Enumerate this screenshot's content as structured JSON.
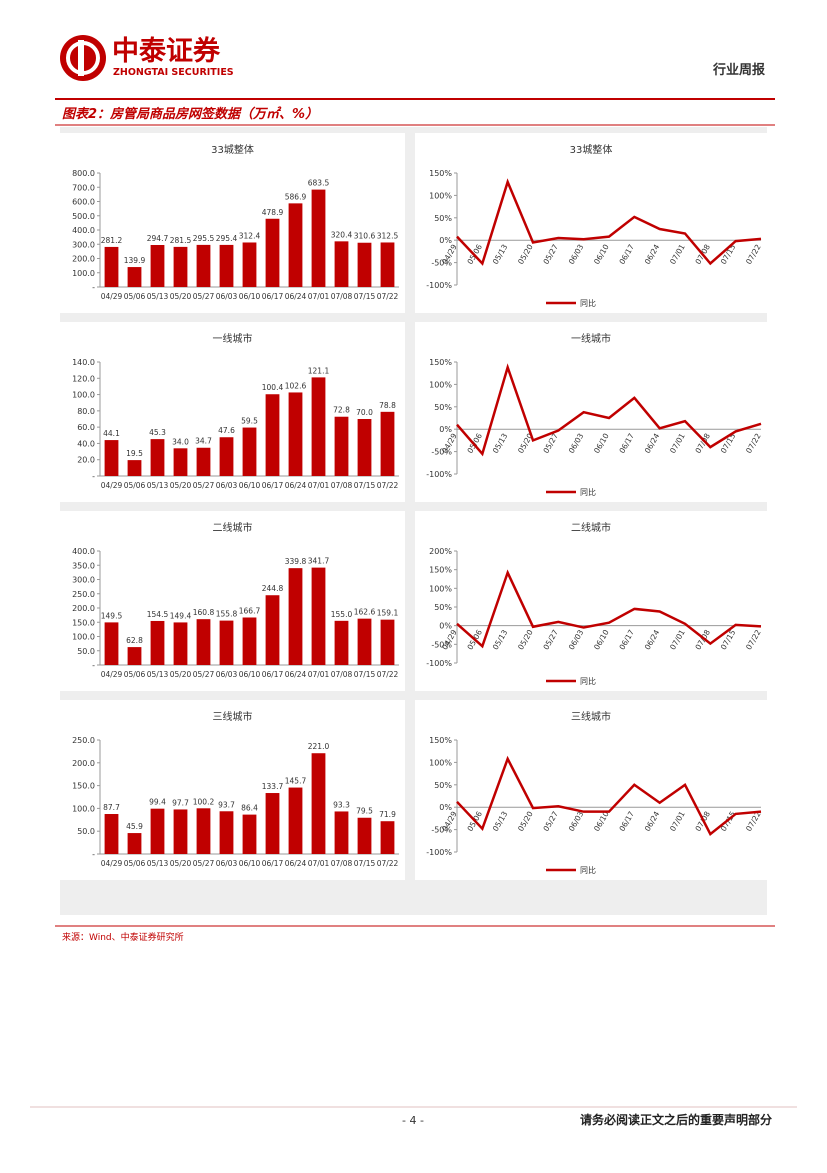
{
  "header": {
    "company": "中泰证券",
    "company_en": "ZHONGTAI SECURITIES",
    "report_type": "行业周报"
  },
  "figure_title": "图表2：房管局商品房网签数据（万㎡、%）",
  "source": "来源：Wind、中泰证券研究所",
  "footer": {
    "page": "- 4 -",
    "disclaimer": "请务必阅读正文之后的重要声明部分"
  },
  "chart_data": [
    {
      "type": "bar",
      "title": "33城整体",
      "color": "#c00000",
      "categories": [
        "04/29",
        "05/06",
        "05/13",
        "05/20",
        "05/27",
        "06/03",
        "06/10",
        "06/17",
        "06/24",
        "07/01",
        "07/08",
        "07/15",
        "07/22"
      ],
      "values": [
        281.2,
        139.9,
        294.7,
        281.5,
        295.5,
        295.4,
        312.4,
        478.9,
        586.9,
        683.5,
        320.4,
        310.6,
        312.5
      ],
      "ylim": [
        0,
        800
      ],
      "yticks": [
        {
          "value": 0,
          "label": "-"
        },
        {
          "value": 100,
          "label": "100.0"
        },
        {
          "value": 200,
          "label": "200.0"
        },
        {
          "value": 300,
          "label": "300.0"
        },
        {
          "value": 400,
          "label": "400.0"
        },
        {
          "value": 500,
          "label": "500.0"
        },
        {
          "value": 600,
          "label": "600.0"
        },
        {
          "value": 700,
          "label": "700.0"
        },
        {
          "value": 800,
          "label": "800.0"
        }
      ]
    },
    {
      "type": "line",
      "title": "33城整体",
      "categories": [
        "04/29",
        "05/06",
        "05/13",
        "05/20",
        "05/27",
        "06/03",
        "06/10",
        "06/17",
        "06/24",
        "07/01",
        "07/08",
        "07/15",
        "07/22"
      ],
      "series": [
        {
          "name": "同比",
          "color": "#c00000",
          "values": [
            8,
            -52,
            130,
            -5,
            5,
            2,
            8,
            52,
            25,
            15,
            -52,
            -2,
            3
          ]
        }
      ],
      "ylim": [
        -100,
        150
      ],
      "yticks": [
        {
          "value": -100,
          "label": "-100%"
        },
        {
          "value": -50,
          "label": "-50%"
        },
        {
          "value": 0,
          "label": "0%"
        },
        {
          "value": 50,
          "label": "50%"
        },
        {
          "value": 100,
          "label": "100%"
        },
        {
          "value": 150,
          "label": "150%"
        }
      ]
    },
    {
      "type": "bar",
      "title": "一线城市",
      "color": "#c00000",
      "categories": [
        "04/29",
        "05/06",
        "05/13",
        "05/20",
        "05/27",
        "06/03",
        "06/10",
        "06/17",
        "06/24",
        "07/01",
        "07/08",
        "07/15",
        "07/22"
      ],
      "values": [
        44.1,
        19.5,
        45.3,
        34.0,
        34.7,
        47.6,
        59.5,
        100.4,
        102.6,
        121.1,
        72.8,
        70.0,
        78.8
      ],
      "value_labels": [
        "44.1",
        "19.5",
        "45.3",
        "34.0",
        "34.7",
        "47.6",
        "59.5",
        "100.4",
        "102.6",
        "121.1",
        "72.8",
        "70.0",
        "78.8"
      ],
      "ylim": [
        0,
        140
      ],
      "yticks": [
        {
          "value": 0,
          "label": "-"
        },
        {
          "value": 20,
          "label": "20.0"
        },
        {
          "value": 40,
          "label": "40.0"
        },
        {
          "value": 60,
          "label": "60.0"
        },
        {
          "value": 80,
          "label": "80.0"
        },
        {
          "value": 100,
          "label": "100.0"
        },
        {
          "value": 120,
          "label": "120.0"
        },
        {
          "value": 140,
          "label": "140.0"
        }
      ]
    },
    {
      "type": "line",
      "title": "一线城市",
      "categories": [
        "04/29",
        "05/06",
        "05/13",
        "05/20",
        "05/27",
        "06/03",
        "06/10",
        "06/17",
        "06/24",
        "07/01",
        "07/08",
        "07/15",
        "07/22"
      ],
      "series": [
        {
          "name": "同比",
          "color": "#c00000",
          "values": [
            10,
            -55,
            138,
            -25,
            -3,
            38,
            25,
            70,
            2,
            18,
            -40,
            -5,
            12
          ]
        }
      ],
      "ylim": [
        -100,
        150
      ],
      "yticks": [
        {
          "value": -100,
          "label": "-100%"
        },
        {
          "value": -50,
          "label": "-50%"
        },
        {
          "value": 0,
          "label": "0%"
        },
        {
          "value": 50,
          "label": "50%"
        },
        {
          "value": 100,
          "label": "100%"
        },
        {
          "value": 150,
          "label": "150%"
        }
      ]
    },
    {
      "type": "bar",
      "title": "二线城市",
      "color": "#c00000",
      "categories": [
        "04/29",
        "05/06",
        "05/13",
        "05/20",
        "05/27",
        "06/03",
        "06/10",
        "06/17",
        "06/24",
        "07/01",
        "07/08",
        "07/15",
        "07/22"
      ],
      "values": [
        149.5,
        62.8,
        154.5,
        149.4,
        160.8,
        155.8,
        166.7,
        244.8,
        339.8,
        341.7,
        155.0,
        162.6,
        159.1
      ],
      "value_labels": [
        "149.5",
        "62.8",
        "154.5",
        "149.4",
        "160.8",
        "155.8",
        "166.7",
        "244.8",
        "339.8",
        "341.7",
        "155.0",
        "162.6",
        "159.1"
      ],
      "ylim": [
        0,
        400
      ],
      "yticks": [
        {
          "value": 0,
          "label": "-"
        },
        {
          "value": 50,
          "label": "50.0"
        },
        {
          "value": 100,
          "label": "100.0"
        },
        {
          "value": 150,
          "label": "150.0"
        },
        {
          "value": 200,
          "label": "200.0"
        },
        {
          "value": 250,
          "label": "250.0"
        },
        {
          "value": 300,
          "label": "300.0"
        },
        {
          "value": 350,
          "label": "350.0"
        },
        {
          "value": 400,
          "label": "400.0"
        }
      ]
    },
    {
      "type": "line",
      "title": "二线城市",
      "categories": [
        "04/29",
        "05/06",
        "05/13",
        "05/20",
        "05/27",
        "06/03",
        "06/10",
        "06/17",
        "06/24",
        "07/01",
        "07/08",
        "07/15",
        "07/22"
      ],
      "series": [
        {
          "name": "同比",
          "color": "#c00000",
          "values": [
            5,
            -55,
            142,
            -3,
            10,
            -5,
            8,
            45,
            38,
            5,
            -48,
            2,
            -2
          ]
        }
      ],
      "ylim": [
        -100,
        200
      ],
      "yticks": [
        {
          "value": -100,
          "label": "-100%"
        },
        {
          "value": -50,
          "label": "-50%"
        },
        {
          "value": 0,
          "label": "0%"
        },
        {
          "value": 50,
          "label": "50%"
        },
        {
          "value": 100,
          "label": "100%"
        },
        {
          "value": 150,
          "label": "150%"
        },
        {
          "value": 200,
          "label": "200%"
        }
      ]
    },
    {
      "type": "bar",
      "title": "三线城市",
      "color": "#c00000",
      "categories": [
        "04/29",
        "05/06",
        "05/13",
        "05/20",
        "05/27",
        "06/03",
        "06/10",
        "06/17",
        "06/24",
        "07/01",
        "07/08",
        "07/15",
        "07/22"
      ],
      "values": [
        87.7,
        45.9,
        99.4,
        97.7,
        100.2,
        93.7,
        86.4,
        133.7,
        145.7,
        221.0,
        93.3,
        79.5,
        71.9
      ],
      "value_labels": [
        "87.7",
        "45.9",
        "99.4",
        "97.7",
        "100.2",
        "93.7",
        "86.4",
        "133.7",
        "145.7",
        "221.0",
        "93.3",
        "79.5",
        "71.9"
      ],
      "ylim": [
        0,
        250
      ],
      "yticks": [
        {
          "value": 0,
          "label": "-"
        },
        {
          "value": 50,
          "label": "50.0"
        },
        {
          "value": 100,
          "label": "100.0"
        },
        {
          "value": 150,
          "label": "150.0"
        },
        {
          "value": 200,
          "label": "200.0"
        },
        {
          "value": 250,
          "label": "250.0"
        }
      ]
    },
    {
      "type": "line",
      "title": "三线城市",
      "categories": [
        "04/29",
        "05/06",
        "05/13",
        "05/20",
        "05/27",
        "06/03",
        "06/10",
        "06/17",
        "06/24",
        "07/01",
        "07/08",
        "07/15",
        "07/22"
      ],
      "series": [
        {
          "name": "同比",
          "color": "#c00000",
          "values": [
            12,
            -48,
            108,
            -2,
            2,
            -10,
            -10,
            50,
            10,
            50,
            -60,
            -15,
            -10
          ]
        }
      ],
      "ylim": [
        -100,
        150
      ],
      "yticks": [
        {
          "value": -100,
          "label": "-100%"
        },
        {
          "value": -50,
          "label": "-50%"
        },
        {
          "value": 0,
          "label": "0%"
        },
        {
          "value": 50,
          "label": "50%"
        },
        {
          "value": 100,
          "label": "100%"
        },
        {
          "value": 150,
          "label": "150%"
        }
      ]
    }
  ]
}
